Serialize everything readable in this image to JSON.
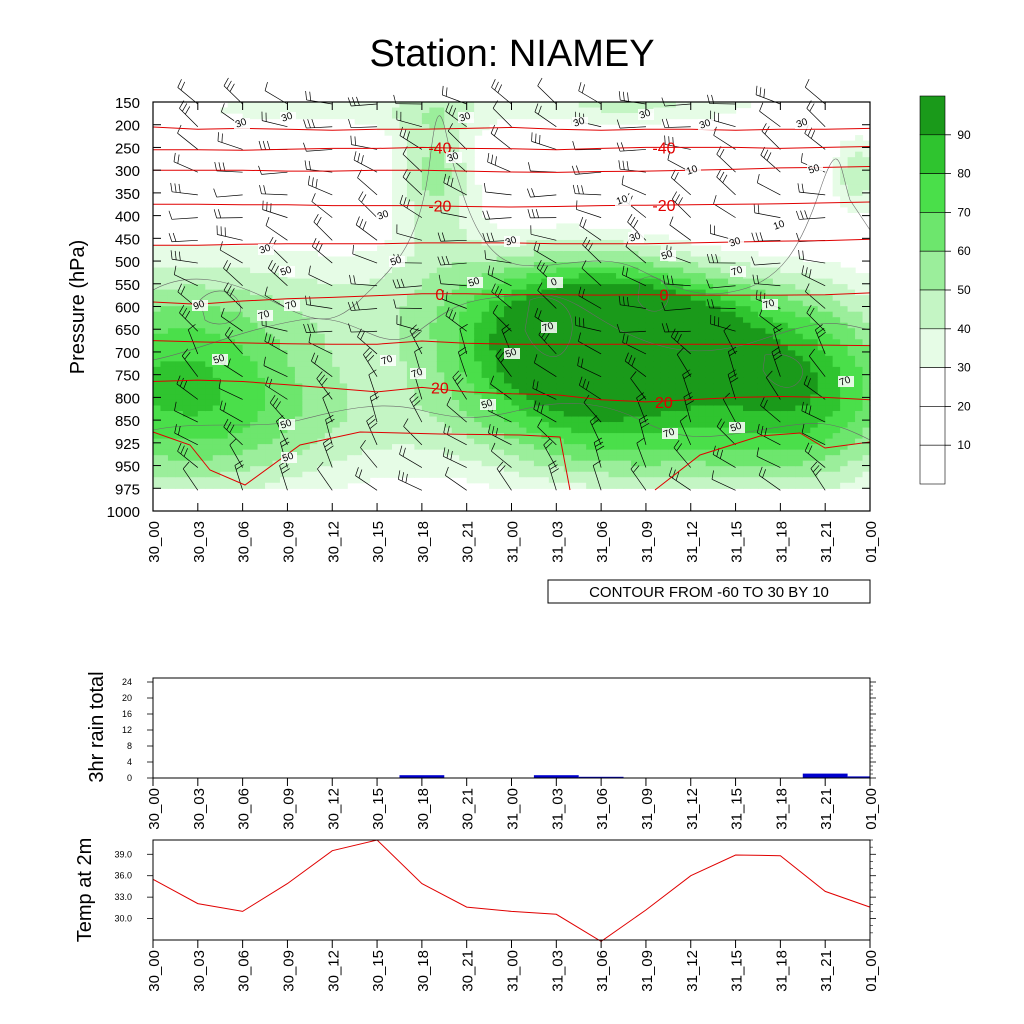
{
  "title": "Station: NIAMEY",
  "colors": {
    "frame": "#000000",
    "temperature_contour": "#e00000",
    "wind_barb": "#000000",
    "rain_bar": "#0000cc",
    "temp_line": "#e00000",
    "rh_fill": [
      "#ffffff",
      "#ffffff",
      "#ffffff",
      "#e6fce6",
      "#c4f5c4",
      "#9bee9b",
      "#6de66d",
      "#4adf4a",
      "#2fc42f",
      "#1a9a1a"
    ]
  },
  "chart_data": [
    {
      "type": "heatmap",
      "name": "cross-section",
      "ylabel": "Pressure (hPa)",
      "xlabel": "",
      "x_ticks": [
        "30_00",
        "30_03",
        "30_06",
        "30_09",
        "30_12",
        "30_15",
        "30_18",
        "30_21",
        "31_00",
        "31_03",
        "31_06",
        "31_09",
        "31_12",
        "31_15",
        "31_18",
        "31_21",
        "01_00"
      ],
      "y_ticks": [
        150,
        200,
        250,
        300,
        350,
        400,
        450,
        500,
        550,
        600,
        650,
        700,
        750,
        800,
        850,
        925,
        950,
        975,
        1000
      ],
      "colorbar": {
        "labels": [
          "10",
          "20",
          "30",
          "40",
          "50",
          "60",
          "70",
          "80",
          "90"
        ]
      },
      "info_label": "CONTOUR FROM -60 TO 30 BY 10",
      "temperature_contours": [
        {
          "value": -50,
          "label": "",
          "level_hPa": [
            205,
            210,
            208,
            210,
            212,
            210,
            210,
            208,
            206,
            210,
            212,
            210,
            210,
            212,
            210,
            210,
            208
          ]
        },
        {
          "value": -40,
          "label": "-40",
          "level_hPa": [
            255,
            255,
            256,
            254,
            252,
            252,
            250,
            252,
            253,
            255,
            252,
            250,
            250,
            250,
            252,
            250,
            248
          ]
        },
        {
          "value": -30,
          "label": "",
          "level_hPa": [
            300,
            300,
            300,
            302,
            302,
            300,
            300,
            302,
            304,
            305,
            303,
            302,
            300,
            298,
            295,
            294,
            292
          ]
        },
        {
          "value": -20,
          "label": "-20",
          "level_hPa": [
            375,
            375,
            376,
            376,
            378,
            378,
            378,
            380,
            381,
            380,
            378,
            377,
            376,
            375,
            374,
            372,
            370
          ]
        },
        {
          "value": -10,
          "label": "",
          "level_hPa": [
            465,
            465,
            463,
            462,
            462,
            462,
            460,
            460,
            460,
            462,
            462,
            462,
            460,
            458,
            456,
            455,
            452
          ]
        },
        {
          "value": 0,
          "label": "0",
          "level_hPa": [
            590,
            595,
            588,
            583,
            580,
            576,
            572,
            572,
            574,
            574,
            575,
            574,
            575,
            575,
            575,
            574,
            570
          ]
        },
        {
          "value": 10,
          "label": "",
          "level_hPa": [
            675,
            678,
            680,
            682,
            683,
            683,
            676,
            681,
            683,
            683,
            683,
            683,
            683,
            683,
            685,
            685,
            686
          ]
        },
        {
          "value": 20,
          "label": "20",
          "level_hPa": [
            765,
            762,
            765,
            772,
            780,
            788,
            778,
            788,
            792,
            794,
            805,
            810,
            805,
            800,
            798,
            800,
            805
          ]
        }
      ],
      "rh_labels": [
        "30",
        "30",
        "30",
        "30",
        "30",
        "30",
        "30",
        "50",
        "30",
        "10",
        "10",
        "10",
        "30",
        "30",
        "30",
        "50",
        "30",
        "30",
        "50",
        "50",
        "50",
        "90",
        "70",
        "70",
        "70",
        "0",
        "50",
        "70",
        "70",
        "70",
        "50",
        "50",
        "50",
        "70",
        "70",
        "50",
        "50",
        "70"
      ]
    },
    {
      "type": "bar",
      "name": "rain",
      "ylabel": "3hr rain total",
      "xlabel": "",
      "categories": [
        "30_00",
        "30_03",
        "30_06",
        "30_09",
        "30_12",
        "30_15",
        "30_18",
        "30_21",
        "31_00",
        "31_03",
        "31_06",
        "31_09",
        "31_12",
        "31_15",
        "31_18",
        "31_21",
        "01_00"
      ],
      "values": [
        0,
        0,
        0,
        0,
        0,
        0,
        0.7,
        0,
        0,
        0.7,
        0.3,
        0,
        0,
        0,
        0,
        1.1,
        0.4
      ],
      "ylim": [
        0,
        25
      ],
      "y_ticks": [
        0,
        4,
        8,
        12,
        16,
        20,
        24
      ]
    },
    {
      "type": "line",
      "name": "temperature",
      "ylabel": "Temp at 2m",
      "xlabel": "",
      "categories": [
        "30_00",
        "30_03",
        "30_06",
        "30_09",
        "30_12",
        "30_15",
        "30_18",
        "30_21",
        "31_00",
        "31_03",
        "31_06",
        "31_09",
        "31_12",
        "31_15",
        "31_18",
        "31_21",
        "01_00"
      ],
      "values": [
        35.5,
        32.1,
        31.0,
        34.9,
        39.5,
        41.0,
        34.9,
        31.6,
        31.0,
        30.6,
        26.8,
        31.2,
        36.0,
        38.9,
        38.8,
        33.8,
        31.6
      ],
      "ylim": [
        27,
        41
      ],
      "y_ticks": [
        "30.0",
        "33.0",
        "36.0",
        "39.0"
      ]
    }
  ]
}
